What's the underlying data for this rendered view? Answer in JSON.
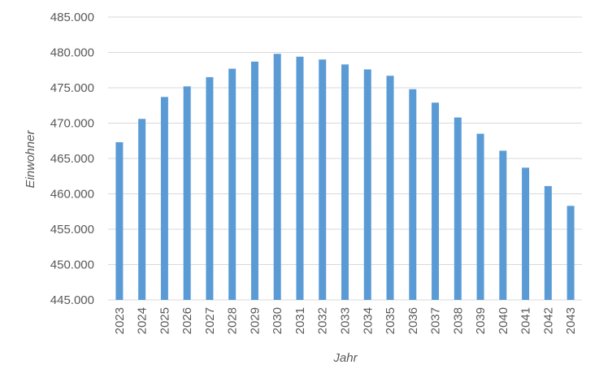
{
  "chart_data": {
    "type": "bar",
    "categories": [
      "2023",
      "2024",
      "2025",
      "2026",
      "2027",
      "2028",
      "2029",
      "2030",
      "2031",
      "2032",
      "2033",
      "2034",
      "2035",
      "2036",
      "2037",
      "2038",
      "2039",
      "2040",
      "2041",
      "2042",
      "2043"
    ],
    "values": [
      467300,
      470600,
      473700,
      475200,
      476500,
      477700,
      478700,
      479800,
      479400,
      479000,
      478300,
      477600,
      476700,
      474800,
      472900,
      470800,
      468500,
      466100,
      463700,
      461100,
      458300
    ],
    "y_ticks": [
      "445.000",
      "450.000",
      "455.000",
      "460.000",
      "465.000",
      "470.000",
      "475.000",
      "480.000",
      "485.000"
    ],
    "ylim": [
      445000,
      485000
    ],
    "xlabel": "Jahr",
    "ylabel": "Einwohner",
    "title": "",
    "grid": true,
    "legend": "none",
    "bar_color": "#5b9bd5",
    "grid_color": "#d9d9d9"
  }
}
